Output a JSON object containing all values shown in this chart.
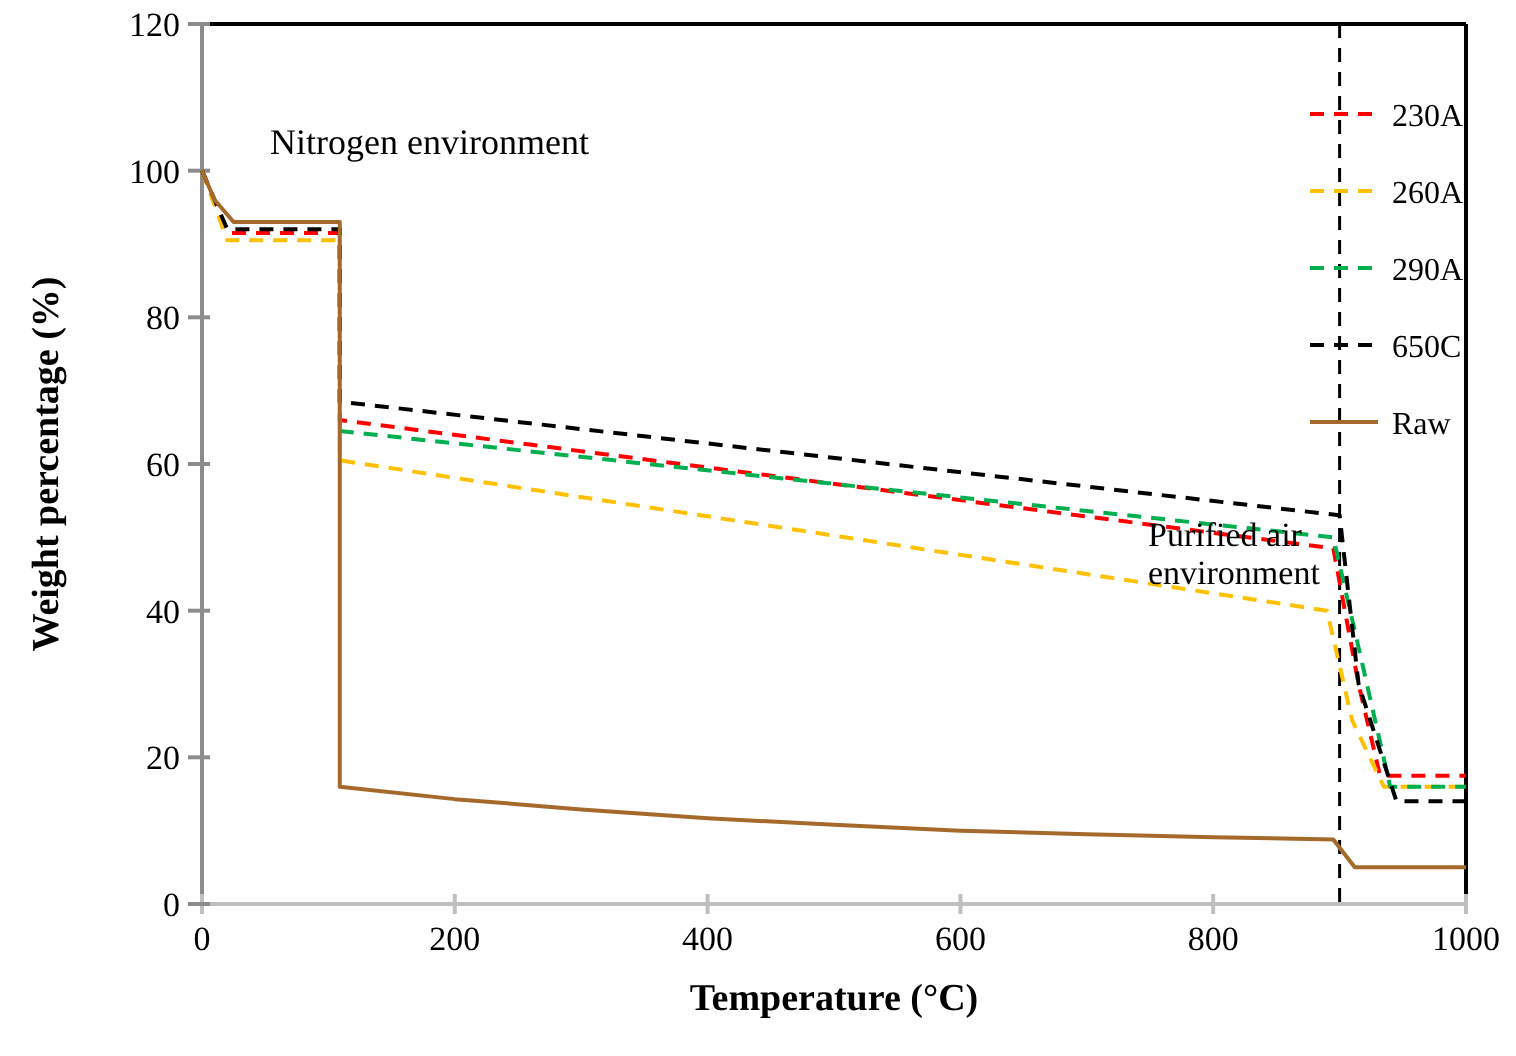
{
  "chart_data": {
    "type": "line",
    "xlabel": "Temperature (°C)",
    "ylabel": "Weight percentage (%)",
    "xlim": [
      0,
      1000
    ],
    "xticks": [
      0,
      200,
      400,
      600,
      800,
      1000
    ],
    "ylim": [
      0,
      120
    ],
    "yticks": [
      0,
      20,
      40,
      60,
      80,
      100,
      120
    ],
    "grid": false,
    "legend": "top right",
    "annotations": [
      "Nitrogen environment",
      "Purified air environment"
    ],
    "ref_lines": [
      {
        "axis": "x",
        "value": 900,
        "color": "#000000",
        "line_style": "dashed"
      }
    ],
    "series": [
      {
        "name": "230A",
        "color": "#ff0000",
        "line_style": "dashed",
        "x": [
          0,
          20,
          109,
          109,
          895,
          915,
          932,
          1000
        ],
        "values": [
          100,
          91.5,
          91.5,
          66,
          48.5,
          30,
          17.5,
          17.5
        ]
      },
      {
        "name": "260A",
        "color": "#ffc000",
        "line_style": "dashed",
        "x": [
          0,
          20,
          109,
          109,
          890,
          910,
          935,
          1000
        ],
        "values": [
          100,
          90.5,
          90.5,
          60.5,
          40,
          25,
          16,
          16
        ]
      },
      {
        "name": "290A",
        "color": "#00b050",
        "line_style": "dashed",
        "x": [
          109,
          895,
          915,
          940,
          1000
        ],
        "values": [
          64.5,
          50,
          35,
          16,
          16
        ]
      },
      {
        "name": "650C",
        "color": "#000000",
        "line_style": "dashed",
        "x": [
          0,
          20,
          109,
          109,
          900,
          915,
          945,
          1000
        ],
        "values": [
          100,
          92,
          92,
          68.5,
          53,
          30,
          14,
          14
        ]
      },
      {
        "name": "Raw",
        "color": "#a5692c",
        "line_style": "solid",
        "x": [
          0,
          10,
          25,
          109,
          109,
          200,
          300,
          400,
          500,
          600,
          700,
          800,
          895,
          912,
          1000
        ],
        "values": [
          100,
          96,
          93,
          93,
          16,
          14.3,
          12.9,
          11.7,
          10.8,
          10,
          9.5,
          9.1,
          8.8,
          5,
          5
        ]
      }
    ]
  }
}
